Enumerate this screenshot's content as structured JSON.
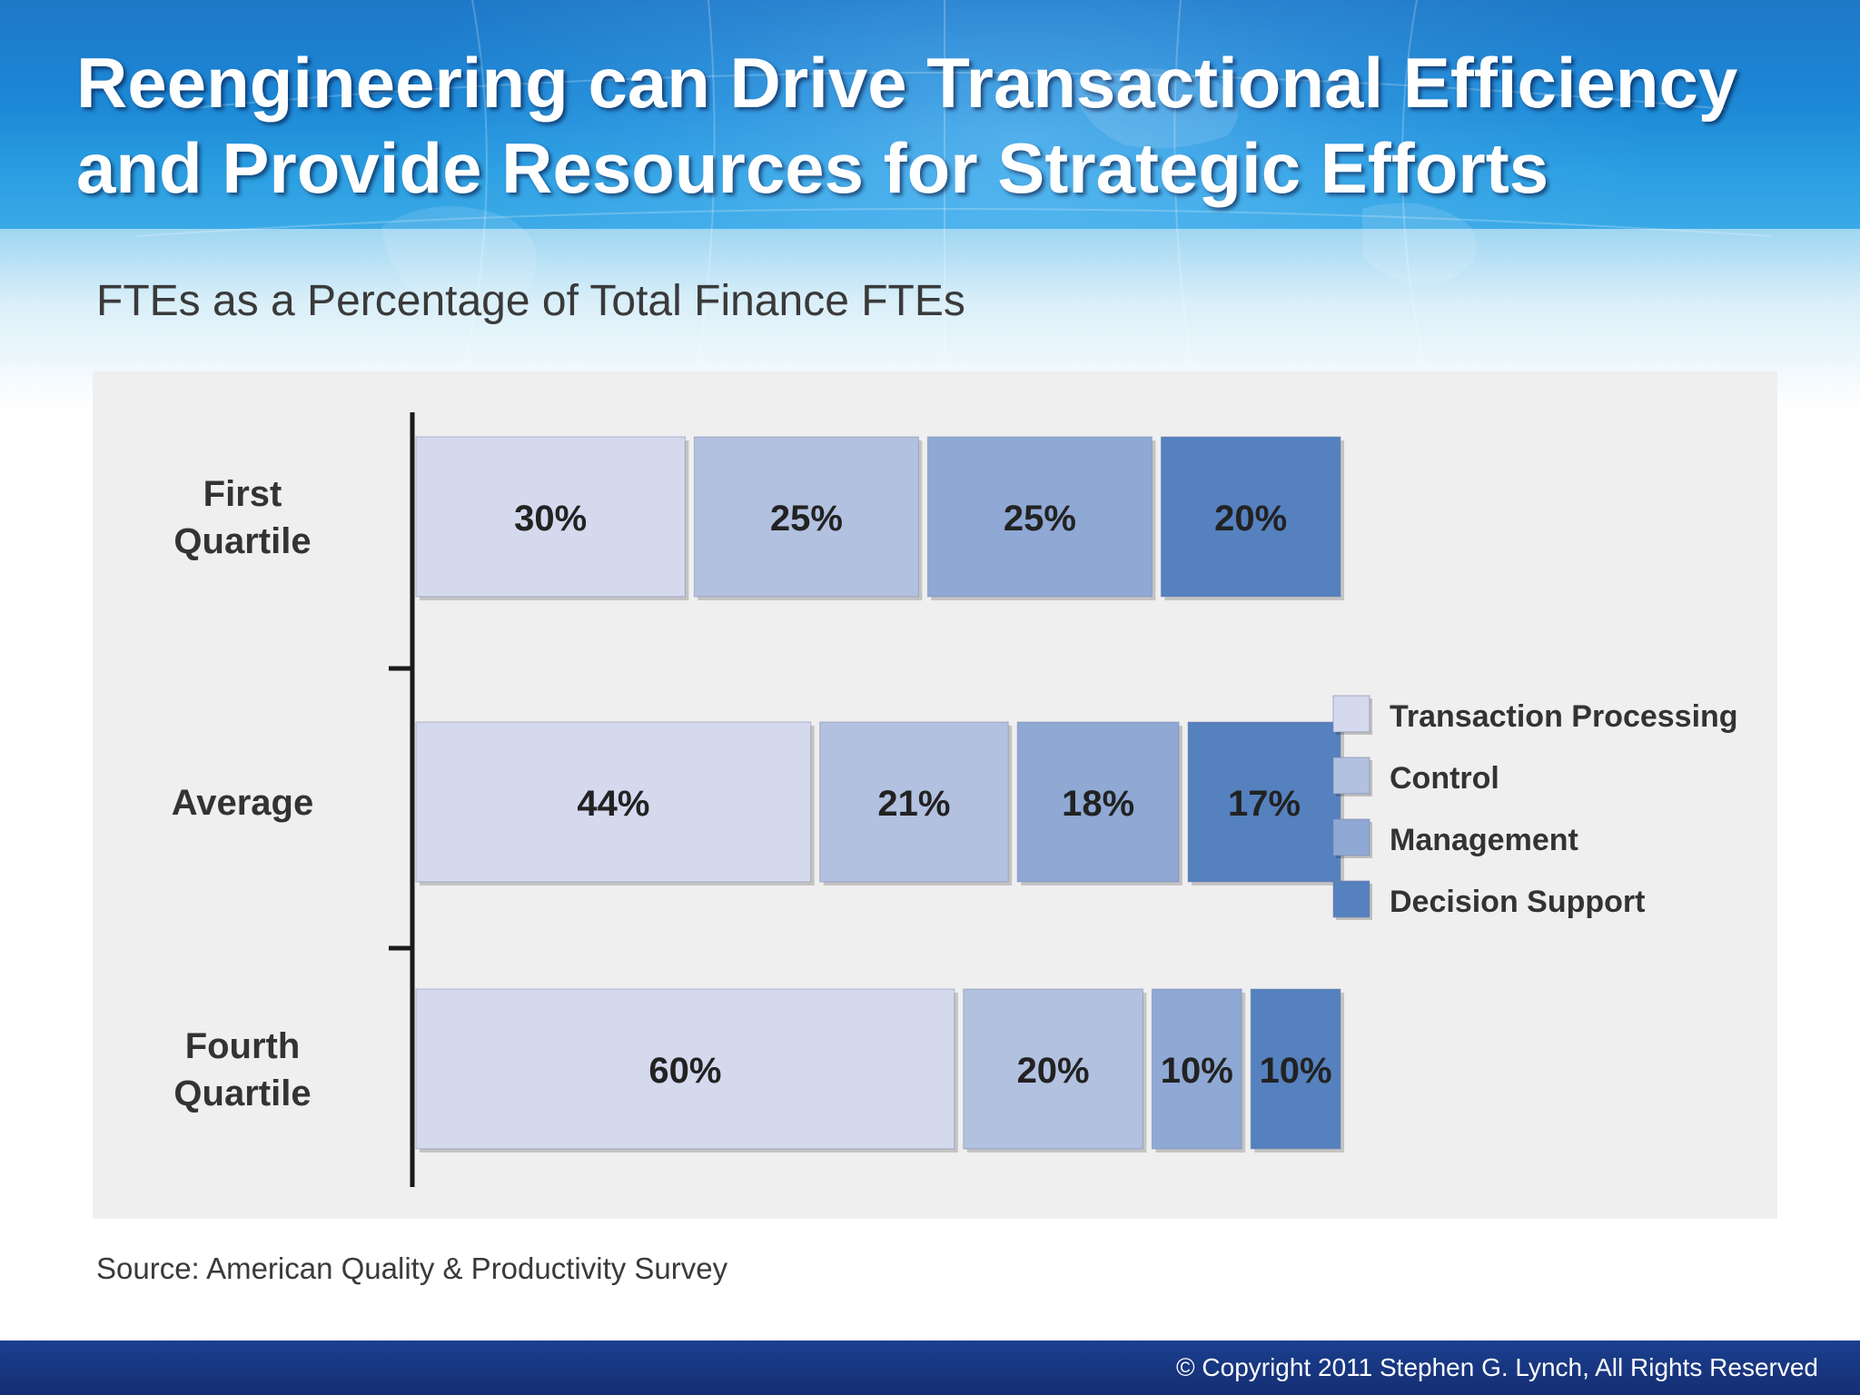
{
  "slide": {
    "title": "Reengineering can Drive Transactional Efficiency and Provide Resources for Strategic Efforts",
    "subtitle": "FTEs as a Percentage of Total Finance FTEs",
    "source": "Source: American Quality & Productivity Survey",
    "copyright": "© Copyright 2011 Stephen G. Lynch, All Rights Reserved"
  },
  "colors": {
    "header": "#1c88d6",
    "footer": "#152e73",
    "panel": "#efeff0",
    "series": [
      "#d5d9ee",
      "#b2c1e0",
      "#8fa8d4",
      "#5581bf"
    ]
  },
  "chart_data": {
    "type": "bar",
    "orientation": "horizontal",
    "stacked": true,
    "title": "FTEs as a Percentage of Total Finance FTEs",
    "categories": [
      "First Quartile",
      "Average",
      "Fourth Quartile"
    ],
    "category_lines": [
      [
        "First",
        "Quartile"
      ],
      [
        "Average"
      ],
      [
        "Fourth",
        "Quartile"
      ]
    ],
    "series": [
      {
        "name": "Transaction Processing",
        "values": [
          30,
          44,
          60
        ]
      },
      {
        "name": "Control",
        "values": [
          25,
          21,
          20
        ]
      },
      {
        "name": "Management",
        "values": [
          25,
          18,
          10
        ]
      },
      {
        "name": "Decision Support",
        "values": [
          20,
          17,
          10
        ]
      }
    ],
    "data_labels": [
      [
        "30%",
        "44%",
        "60%"
      ],
      [
        "25%",
        "21%",
        "20%"
      ],
      [
        "25%",
        "18%",
        "10%"
      ],
      [
        "20%",
        "17%",
        "10%"
      ]
    ],
    "xlim": [
      0,
      100
    ],
    "legend": "right",
    "grid": false
  }
}
